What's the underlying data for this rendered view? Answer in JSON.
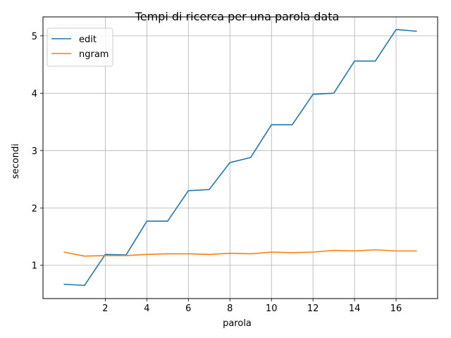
{
  "chart_data": {
    "type": "line",
    "title": "Tempi di ricerca per una parola data",
    "xlabel": "parola",
    "ylabel": "secondi",
    "x": [
      0,
      1,
      2,
      3,
      4,
      5,
      6,
      7,
      8,
      9,
      10,
      11,
      12,
      13,
      14,
      15,
      16,
      17
    ],
    "xlim": [
      -1.0,
      18.0
    ],
    "ylim": [
      0.42,
      5.33
    ],
    "xticks": [
      2,
      4,
      6,
      8,
      10,
      12,
      14,
      16
    ],
    "yticks": [
      1,
      2,
      3,
      4,
      5
    ],
    "grid": true,
    "legend_position": "upper left",
    "series": [
      {
        "name": "edit",
        "color": "#1f77b4",
        "values": [
          0.67,
          0.65,
          1.19,
          1.18,
          1.77,
          1.77,
          2.3,
          2.32,
          2.79,
          2.88,
          3.45,
          3.45,
          3.98,
          4.0,
          4.56,
          4.56,
          5.11,
          5.08
        ]
      },
      {
        "name": "ngram",
        "color": "#ff7f0e",
        "values": [
          1.23,
          1.16,
          1.17,
          1.17,
          1.19,
          1.2,
          1.2,
          1.19,
          1.21,
          1.2,
          1.23,
          1.22,
          1.23,
          1.26,
          1.25,
          1.27,
          1.25,
          1.25
        ]
      }
    ]
  }
}
